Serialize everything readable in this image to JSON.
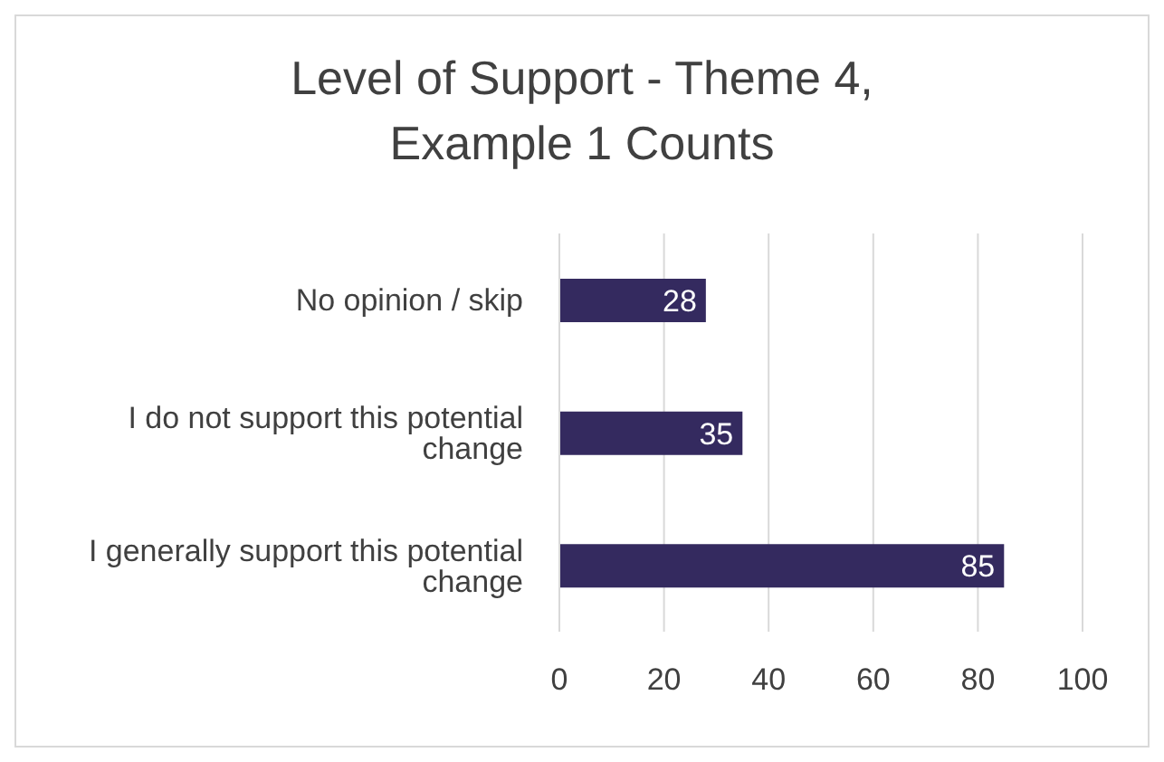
{
  "chart_data": {
    "type": "bar",
    "orientation": "horizontal",
    "title": "Level of Support - Theme 4, Example 1 Counts",
    "categories": [
      "No opinion / skip",
      "I do not support this potential change",
      "I generally support this potential change"
    ],
    "values": [
      28,
      35,
      85
    ],
    "color": "#342a5f",
    "xlim": [
      0,
      100
    ],
    "xticks": [
      0,
      20,
      40,
      60,
      80,
      100
    ],
    "grid": "x",
    "data_labels": true
  }
}
